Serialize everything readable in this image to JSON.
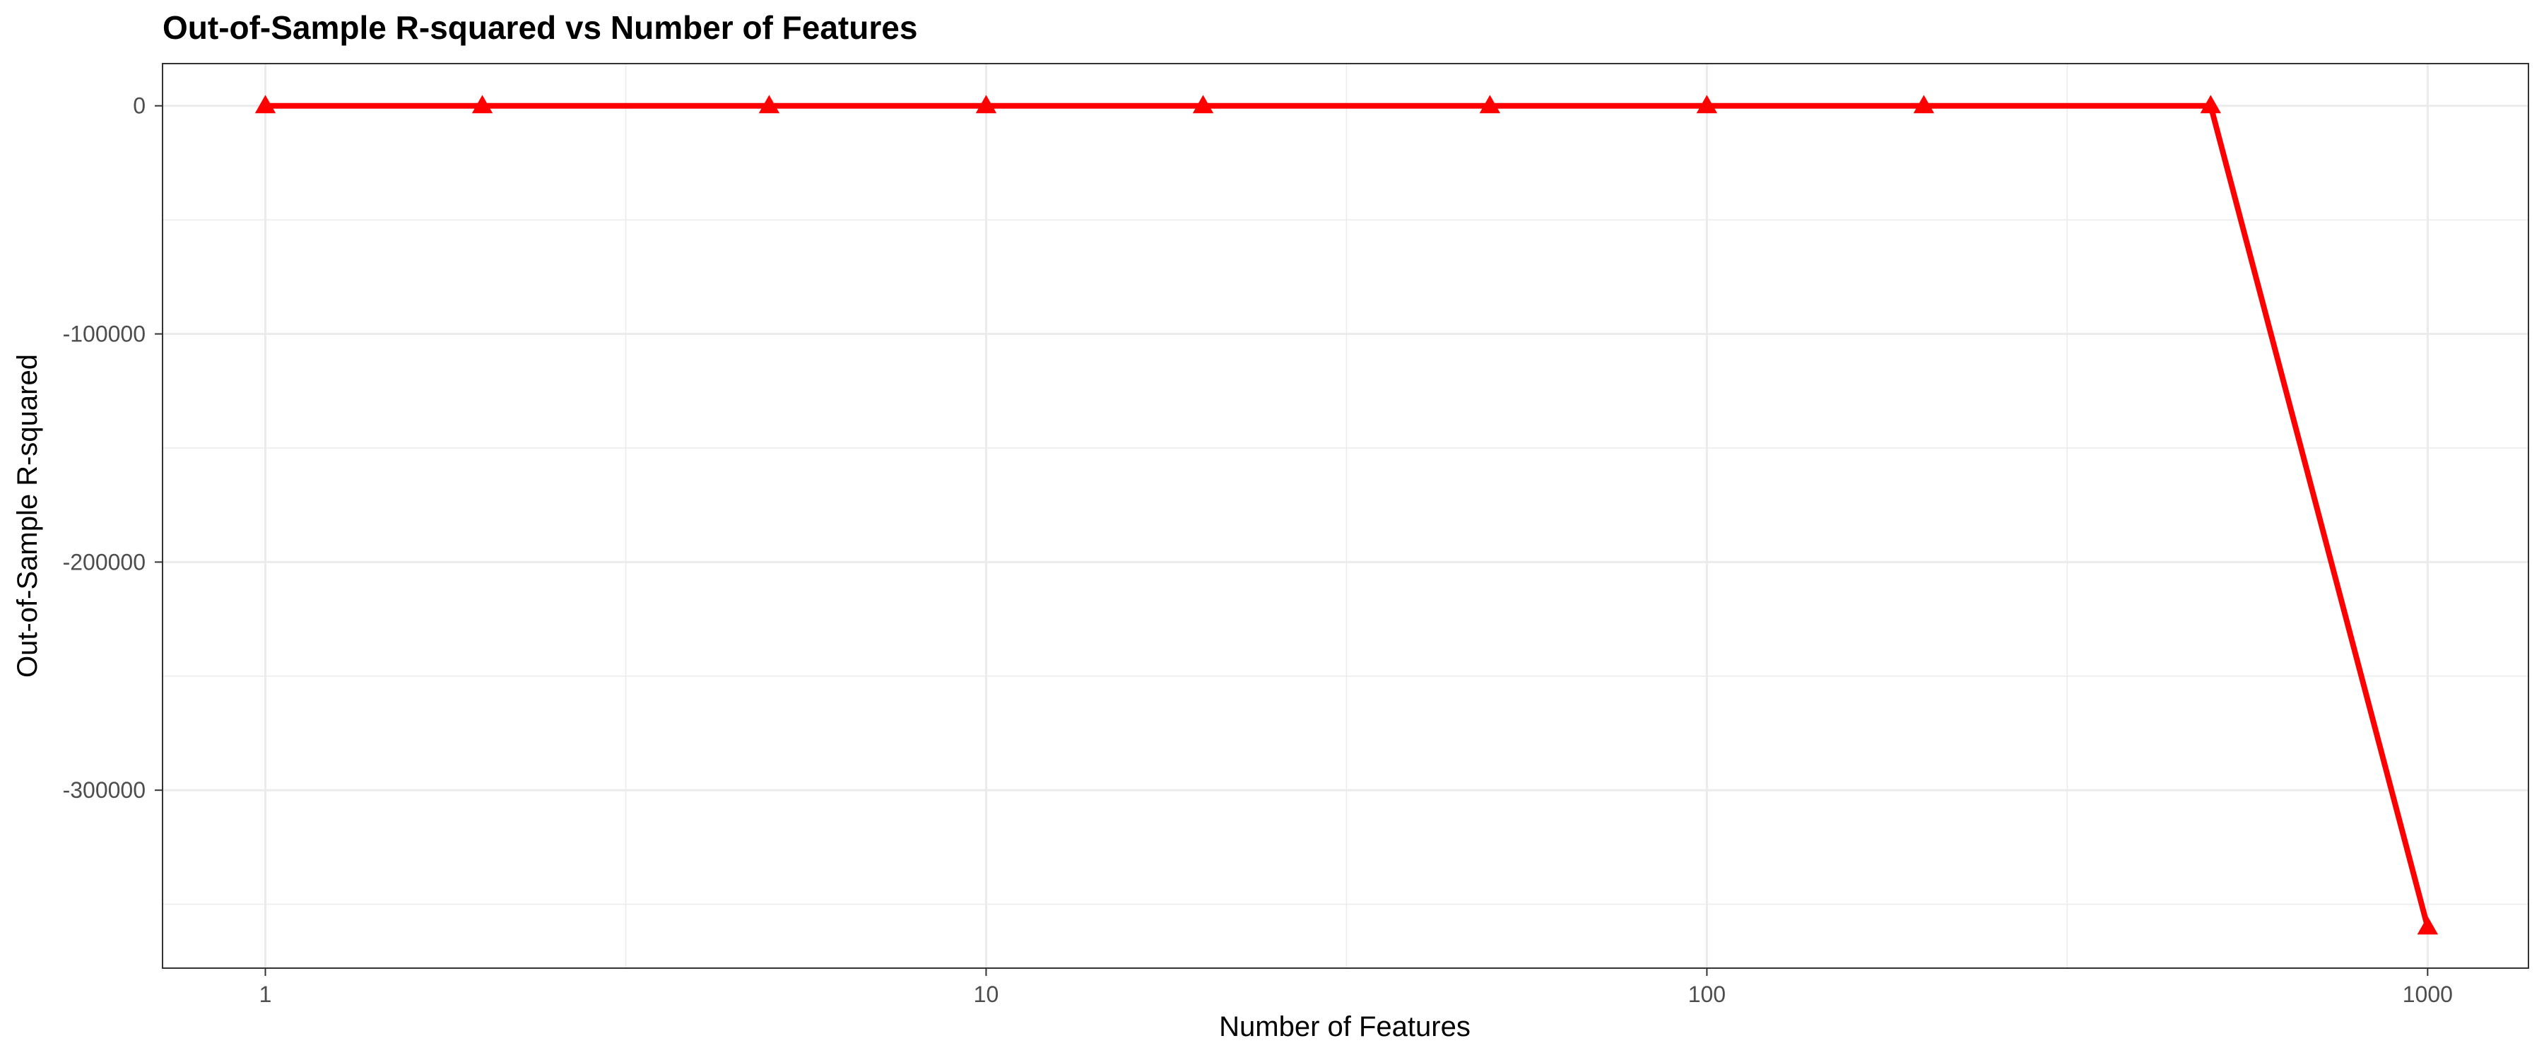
{
  "chart_data": {
    "type": "line",
    "title": "Out-of-Sample R-squared vs Number of Features",
    "xlabel": "Number of Features",
    "ylabel": "Out-of-Sample R-squared",
    "x_scale": "log10",
    "xlim": [
      0.72,
      1380
    ],
    "ylim": [
      -378000,
      18500
    ],
    "x_ticks": [
      1,
      10,
      100,
      1000
    ],
    "x_tick_labels": [
      "1",
      "10",
      "100",
      "1000"
    ],
    "y_ticks": [
      0,
      -100000,
      -200000,
      -300000
    ],
    "y_tick_labels": [
      "0",
      "-100000",
      "-200000",
      "-300000"
    ],
    "series": [
      {
        "name": "Out-of-Sample R-squared",
        "color": "#ff0000",
        "marker": "triangle",
        "x": [
          1,
          2,
          5,
          10,
          20,
          50,
          100,
          200,
          500,
          1000
        ],
        "y": [
          0,
          0,
          0,
          0,
          0,
          0,
          0,
          0,
          0,
          -360000
        ]
      }
    ],
    "grid": true,
    "legend": "none"
  }
}
